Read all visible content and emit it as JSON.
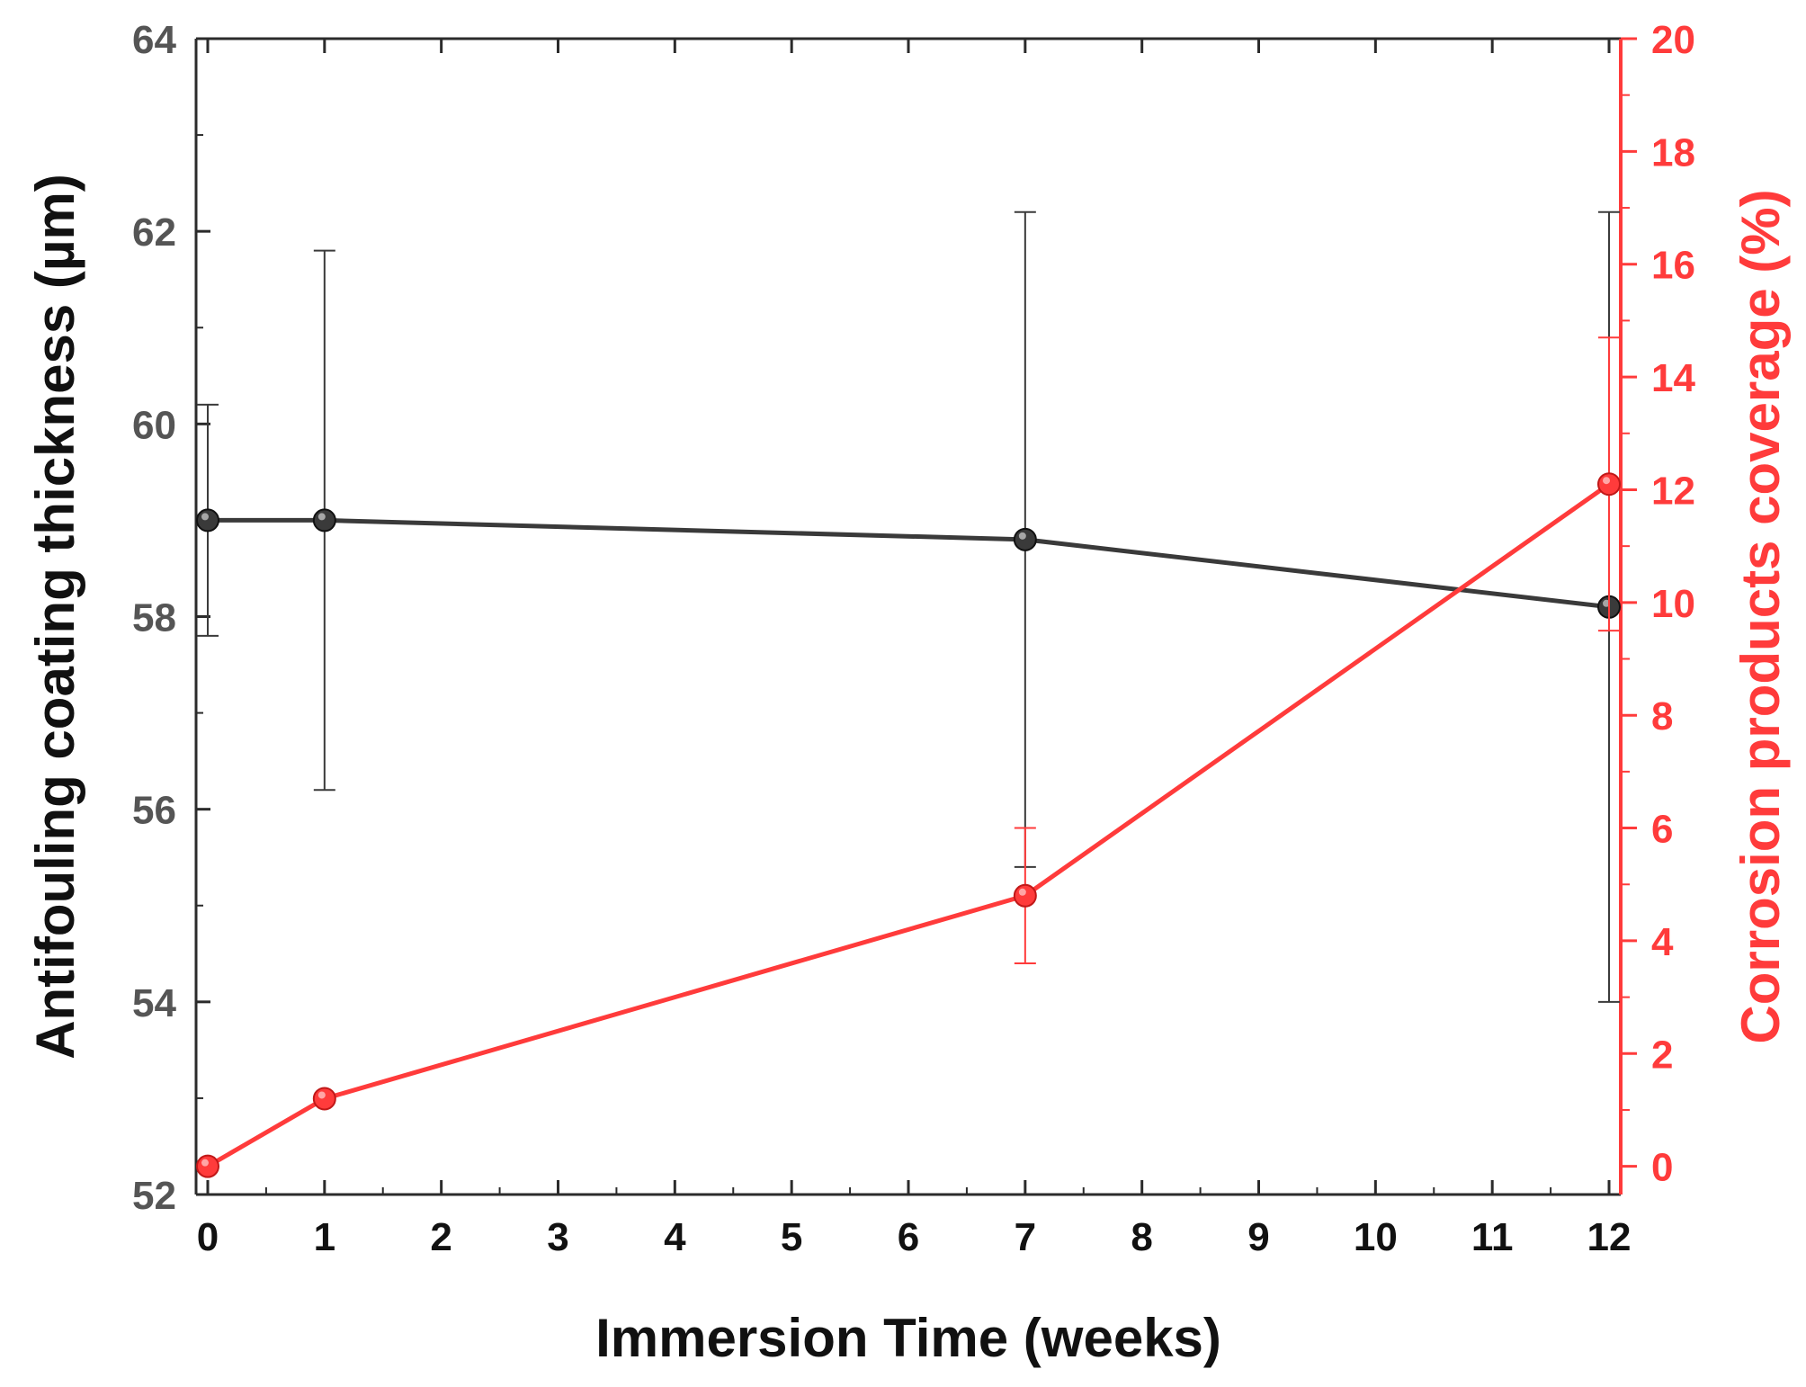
{
  "chart_data": {
    "type": "line",
    "xlabel": "Immersion Time (weeks)",
    "ylabel": "Antifouling coating thickness (µm)",
    "y2label": "Corrosion products coverage (%)",
    "xlim": [
      -0.1,
      12.1
    ],
    "ylim": [
      52,
      64
    ],
    "y2lim": [
      -0.5,
      20
    ],
    "x_ticks": [
      0,
      1,
      2,
      3,
      4,
      5,
      6,
      7,
      8,
      9,
      10,
      11,
      12
    ],
    "y_ticks": [
      52,
      54,
      56,
      58,
      60,
      62,
      64
    ],
    "y2_ticks": [
      0,
      2,
      4,
      6,
      8,
      10,
      12,
      14,
      16,
      18,
      20
    ],
    "grid": false,
    "series": [
      {
        "name": "Antifouling coating thickness",
        "axis": "left",
        "color": "#3a3a3a",
        "x": [
          0,
          1,
          7,
          12
        ],
        "values": [
          59.0,
          59.0,
          58.8,
          58.1
        ],
        "error": [
          1.2,
          2.8,
          3.4,
          4.1
        ]
      },
      {
        "name": "Corrosion products coverage",
        "axis": "right",
        "color": "#ff3b3b",
        "x": [
          0,
          1,
          7,
          12
        ],
        "values": [
          0.0,
          1.2,
          4.8,
          12.1
        ],
        "error": [
          0,
          0,
          1.2,
          2.6
        ]
      }
    ]
  },
  "colors": {
    "left_axis": "#2b2b2b",
    "right_axis": "#ff3b3b",
    "left_tick_text": "#555555",
    "right_tick_text": "#ff3b3b"
  }
}
